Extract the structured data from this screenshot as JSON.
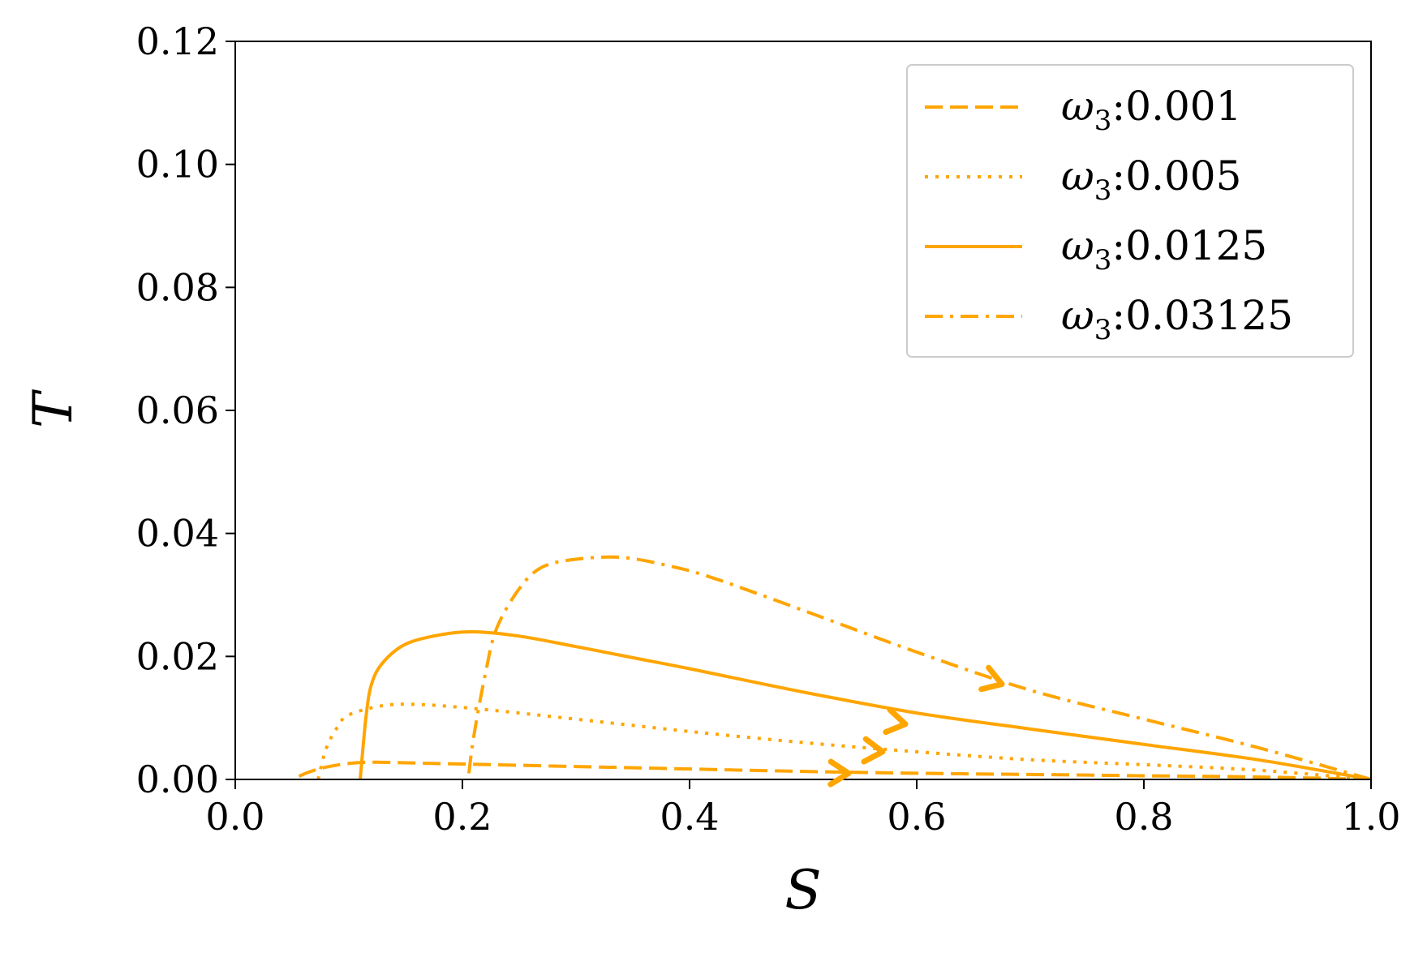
{
  "chart_data": {
    "type": "line",
    "title": "",
    "xlabel": "S",
    "ylabel": "T",
    "xlim": [
      0.0,
      1.0
    ],
    "ylim": [
      0.0,
      0.12
    ],
    "x_ticks": [
      "0.0",
      "0.2",
      "0.4",
      "0.6",
      "0.8",
      "1.0"
    ],
    "y_ticks": [
      "0.00",
      "0.02",
      "0.04",
      "0.06",
      "0.08",
      "0.10",
      "0.12"
    ],
    "grid": false,
    "legend_position": "top-right",
    "color": "#FFA500",
    "series": [
      {
        "name_prefix": "ω",
        "name_subscript": "3",
        "name_value": ":0.001",
        "linestyle": "dashed",
        "points": [
          [
            1.0,
            0.0
          ],
          [
            0.9,
            0.0004
          ],
          [
            0.8,
            0.0006
          ],
          [
            0.7,
            0.0008
          ],
          [
            0.6,
            0.001
          ],
          [
            0.5,
            0.0013
          ],
          [
            0.4,
            0.0017
          ],
          [
            0.3,
            0.0021
          ],
          [
            0.2,
            0.0025
          ],
          [
            0.15,
            0.0027
          ],
          [
            0.12,
            0.0028
          ],
          [
            0.1,
            0.0026
          ],
          [
            0.08,
            0.002
          ],
          [
            0.065,
            0.0012
          ],
          [
            0.05,
            0.0
          ]
        ],
        "arrow_at": [
          0.54,
          0.001
        ]
      },
      {
        "name_prefix": "ω",
        "name_subscript": "3",
        "name_value": ":0.005",
        "linestyle": "dotted",
        "points": [
          [
            1.0,
            0.0
          ],
          [
            0.9,
            0.0015
          ],
          [
            0.8,
            0.0024
          ],
          [
            0.7,
            0.0032
          ],
          [
            0.6,
            0.0045
          ],
          [
            0.5,
            0.006
          ],
          [
            0.4,
            0.0078
          ],
          [
            0.3,
            0.0098
          ],
          [
            0.25,
            0.0108
          ],
          [
            0.2,
            0.0117
          ],
          [
            0.16,
            0.0122
          ],
          [
            0.13,
            0.012
          ],
          [
            0.1,
            0.0105
          ],
          [
            0.09,
            0.0085
          ],
          [
            0.08,
            0.005
          ],
          [
            0.073,
            0.0
          ]
        ],
        "arrow_at": [
          0.57,
          0.0045
        ]
      },
      {
        "name_prefix": "ω",
        "name_subscript": "3",
        "name_value": ":0.0125",
        "linestyle": "solid",
        "points": [
          [
            1.0,
            0.0
          ],
          [
            0.9,
            0.0032
          ],
          [
            0.8,
            0.0057
          ],
          [
            0.7,
            0.0082
          ],
          [
            0.6,
            0.0108
          ],
          [
            0.5,
            0.0142
          ],
          [
            0.4,
            0.018
          ],
          [
            0.35,
            0.0198
          ],
          [
            0.3,
            0.0216
          ],
          [
            0.25,
            0.0233
          ],
          [
            0.21,
            0.024
          ],
          [
            0.18,
            0.0235
          ],
          [
            0.15,
            0.022
          ],
          [
            0.13,
            0.019
          ],
          [
            0.12,
            0.0155
          ],
          [
            0.115,
            0.01
          ],
          [
            0.11,
            0.0
          ]
        ],
        "arrow_at": [
          0.59,
          0.009
        ]
      },
      {
        "name_prefix": "ω",
        "name_subscript": "3",
        "name_value": ":0.03125",
        "linestyle": "dashdot",
        "points": [
          [
            1.0,
            0.0
          ],
          [
            0.9,
            0.0052
          ],
          [
            0.8,
            0.0098
          ],
          [
            0.7,
            0.0145
          ],
          [
            0.6,
            0.0207
          ],
          [
            0.5,
            0.0275
          ],
          [
            0.42,
            0.0328
          ],
          [
            0.38,
            0.0348
          ],
          [
            0.34,
            0.0361
          ],
          [
            0.3,
            0.0358
          ],
          [
            0.27,
            0.0345
          ],
          [
            0.25,
            0.031
          ],
          [
            0.23,
            0.0245
          ],
          [
            0.22,
            0.017
          ],
          [
            0.21,
            0.007
          ],
          [
            0.205,
            0.0
          ]
        ],
        "arrow_at": [
          0.675,
          0.0155
        ]
      }
    ]
  }
}
